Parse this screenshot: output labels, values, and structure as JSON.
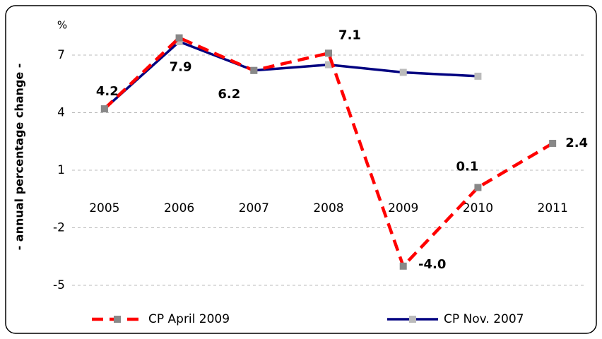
{
  "chart_data": {
    "type": "line",
    "y_label": "- annual percentage change -",
    "y_unit": "%",
    "categories": [
      "2005",
      "2006",
      "2007",
      "2008",
      "2009",
      "2010",
      "2011"
    ],
    "series": [
      {
        "name": "CP April 2009",
        "color": "#ff0000",
        "values": [
          4.2,
          7.9,
          6.2,
          7.1,
          -4.0,
          0.1,
          2.4
        ],
        "value_labels": [
          "4.2",
          "7.9",
          "6.2",
          "7.1",
          "-4.0",
          "0.1",
          "2.4"
        ]
      },
      {
        "name": "CP Nov. 2007",
        "color": "#000080",
        "values": [
          4.2,
          7.7,
          6.2,
          6.5,
          6.1,
          5.9,
          null
        ]
      }
    ],
    "ylim": [
      -5,
      8.4
    ],
    "yticks": [
      -5,
      -2,
      1,
      4,
      7
    ],
    "grid": true
  }
}
